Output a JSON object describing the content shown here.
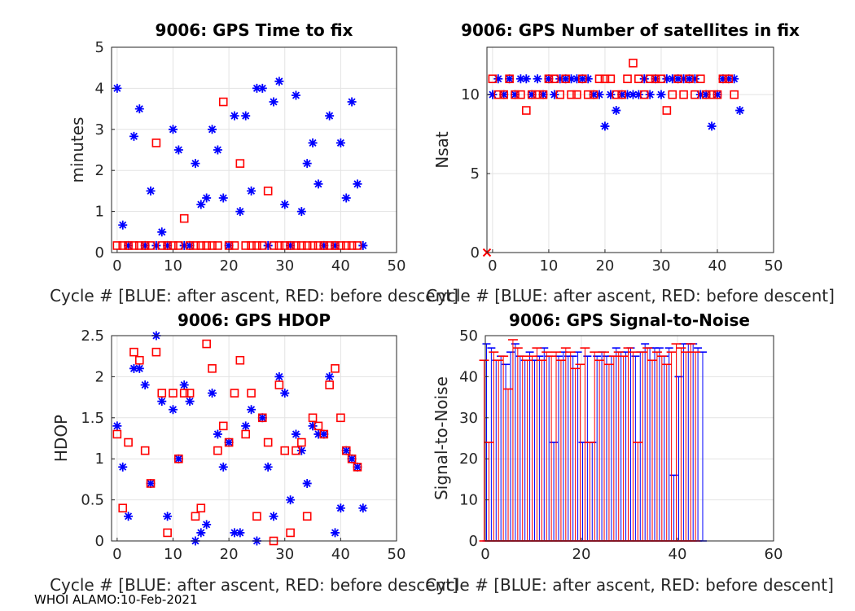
{
  "footer": "WHOI ALAMO:10-Feb-2021",
  "colors": {
    "blue": "#0000ff",
    "red": "#ff0000"
  },
  "chart_data": [
    {
      "id": "ttf",
      "type": "scatter",
      "title": "9006: GPS Time to fix",
      "xlabel": "Cycle #  [BLUE: after ascent, RED: before descent]",
      "ylabel": "minutes",
      "xlim": [
        -1,
        50
      ],
      "ylim": [
        0,
        5
      ],
      "xticks": [
        0,
        10,
        20,
        30,
        40,
        50
      ],
      "yticks": [
        0,
        1,
        2,
        3,
        4,
        5
      ],
      "series": [
        {
          "name": "after ascent",
          "marker": "asterisk",
          "color": "#0000ff",
          "x": [
            0,
            1,
            2,
            3,
            4,
            5,
            6,
            7,
            8,
            9,
            10,
            11,
            12,
            13,
            14,
            15,
            16,
            17,
            18,
            19,
            20,
            21,
            22,
            23,
            24,
            25,
            26,
            27,
            28,
            29,
            30,
            31,
            32,
            33,
            34,
            35,
            36,
            37,
            38,
            39,
            40,
            41,
            42,
            43,
            44
          ],
          "y": [
            4,
            0.67,
            0.17,
            2.83,
            3.5,
            0.17,
            1.5,
            0.17,
            0.5,
            0.17,
            3,
            2.5,
            0.17,
            0.17,
            2.17,
            1.17,
            1.33,
            3,
            2.5,
            1.33,
            0.17,
            3.33,
            1,
            3.33,
            1.5,
            4,
            4,
            0.17,
            3.67,
            4.17,
            1.17,
            0.17,
            3.83,
            1,
            2.17,
            2.67,
            1.67,
            0.17,
            3.33,
            0.17,
            2.67,
            1.33,
            3.67,
            1.67,
            0.17
          ]
        },
        {
          "name": "before descent",
          "marker": "square",
          "color": "#ff0000",
          "x": [
            0,
            1,
            2,
            3,
            4,
            5,
            6,
            7,
            8,
            9,
            10,
            11,
            12,
            13,
            14,
            15,
            16,
            17,
            18,
            19,
            20,
            21,
            22,
            23,
            24,
            25,
            26,
            27,
            28,
            29,
            30,
            31,
            32,
            33,
            34,
            35,
            36,
            37,
            38,
            39,
            40,
            41,
            42,
            43
          ],
          "y": [
            0.17,
            0.17,
            0.17,
            0.17,
            0.17,
            0.17,
            0.17,
            2.67,
            0.17,
            0.17,
            0.17,
            0.17,
            0.83,
            0.17,
            0.17,
            0.17,
            0.17,
            0.17,
            0.17,
            3.67,
            0.17,
            0.17,
            2.17,
            0.17,
            0.17,
            0.17,
            0.17,
            1.5,
            0.17,
            0.17,
            0.17,
            0.17,
            0.17,
            0.17,
            0.17,
            0.17,
            0.17,
            0.17,
            0.17,
            0.17,
            0.17,
            0.17,
            0.17,
            0.17
          ]
        }
      ]
    },
    {
      "id": "nsat",
      "type": "scatter",
      "title": "9006: GPS Number of satellites in fix",
      "xlabel": "Cycle #  [BLUE: after ascent, RED: before descent]",
      "ylabel": "Nsat",
      "xlim": [
        -1,
        50
      ],
      "ylim": [
        0,
        13
      ],
      "xticks": [
        0,
        10,
        20,
        30,
        40,
        50
      ],
      "yticks": [
        0,
        5,
        10
      ],
      "series": [
        {
          "name": "after ascent",
          "marker": "asterisk",
          "color": "#0000ff",
          "x": [
            0,
            1,
            2,
            3,
            4,
            5,
            6,
            7,
            8,
            9,
            10,
            11,
            12,
            13,
            14,
            15,
            16,
            17,
            18,
            19,
            20,
            21,
            22,
            23,
            24,
            25,
            26,
            27,
            28,
            29,
            30,
            31,
            32,
            33,
            34,
            35,
            36,
            37,
            38,
            39,
            40,
            41,
            42,
            43,
            44
          ],
          "y": [
            10,
            11,
            10,
            11,
            10,
            11,
            11,
            10,
            11,
            10,
            11,
            10,
            11,
            11,
            11,
            11,
            11,
            11,
            10,
            10,
            8,
            10,
            9,
            10,
            10,
            10,
            10,
            11,
            10,
            11,
            10,
            11,
            11,
            11,
            11,
            11,
            11,
            10,
            10,
            8,
            10,
            11,
            11,
            11,
            9
          ]
        },
        {
          "name": "before descent",
          "marker": "square",
          "color": "#ff0000",
          "x": [
            0,
            1,
            2,
            3,
            4,
            5,
            6,
            7,
            8,
            9,
            10,
            11,
            12,
            13,
            14,
            15,
            16,
            17,
            18,
            19,
            20,
            21,
            22,
            23,
            24,
            25,
            26,
            27,
            28,
            29,
            30,
            31,
            32,
            33,
            34,
            35,
            36,
            37,
            38,
            39,
            40,
            41,
            42,
            43
          ],
          "y": [
            11,
            10,
            10,
            11,
            10,
            10,
            9,
            10,
            10,
            10,
            11,
            11,
            10,
            11,
            10,
            10,
            11,
            10,
            10,
            11,
            11,
            11,
            10,
            10,
            11,
            12,
            11,
            10,
            11,
            11,
            11,
            9,
            10,
            11,
            10,
            11,
            10,
            11,
            10,
            10,
            10,
            11,
            11,
            10
          ]
        },
        {
          "name": "zero marker",
          "marker": "x",
          "color": "#ff0000",
          "x": [
            -1
          ],
          "y": [
            0
          ]
        }
      ]
    },
    {
      "id": "hdop",
      "type": "scatter",
      "title": "9006: GPS HDOP",
      "xlabel": "Cycle #  [BLUE: after ascent, RED: before descent]",
      "ylabel": "HDOP",
      "xlim": [
        -1,
        50
      ],
      "ylim": [
        0,
        2.5
      ],
      "xticks": [
        0,
        10,
        20,
        30,
        40,
        50
      ],
      "yticks": [
        0,
        0.5,
        1,
        1.5,
        2,
        2.5
      ],
      "series": [
        {
          "name": "after ascent",
          "marker": "asterisk",
          "color": "#0000ff",
          "x": [
            0,
            1,
            2,
            3,
            4,
            5,
            6,
            7,
            8,
            9,
            10,
            11,
            12,
            13,
            14,
            15,
            16,
            17,
            18,
            19,
            20,
            21,
            22,
            23,
            24,
            25,
            26,
            27,
            28,
            29,
            30,
            31,
            32,
            33,
            34,
            35,
            36,
            37,
            38,
            39,
            40,
            41,
            42,
            43,
            44
          ],
          "y": [
            1.4,
            0.9,
            0.3,
            2.1,
            2.1,
            1.9,
            0.7,
            2.5,
            1.7,
            0.3,
            1.6,
            1,
            1.9,
            1.7,
            0,
            0.1,
            0.2,
            1.8,
            1.3,
            0.9,
            1.2,
            0.1,
            0.1,
            1.4,
            1.6,
            0,
            1.5,
            0.9,
            0.3,
            2,
            1.8,
            0.5,
            1.3,
            1.1,
            0.7,
            1.4,
            1.3,
            1.3,
            2,
            0.1,
            0.4,
            1.1,
            1,
            0.9,
            0.4
          ]
        },
        {
          "name": "before descent",
          "marker": "square",
          "color": "#ff0000",
          "x": [
            0,
            1,
            2,
            3,
            4,
            5,
            6,
            7,
            8,
            9,
            10,
            11,
            12,
            13,
            14,
            15,
            16,
            17,
            18,
            19,
            20,
            21,
            22,
            23,
            24,
            25,
            26,
            27,
            28,
            29,
            30,
            31,
            32,
            33,
            34,
            35,
            36,
            37,
            38,
            39,
            40,
            41,
            42,
            43
          ],
          "y": [
            1.3,
            0.4,
            1.2,
            2.3,
            2.2,
            1.1,
            0.7,
            2.3,
            1.8,
            0.1,
            1.8,
            1,
            1.8,
            1.8,
            0.3,
            0.4,
            2.4,
            2.1,
            1.1,
            1.4,
            1.2,
            1.8,
            2.2,
            1.3,
            1.8,
            0.3,
            1.5,
            1.2,
            0,
            1.9,
            1.1,
            0.1,
            1.1,
            1.2,
            0.3,
            1.5,
            1.4,
            1.3,
            1.9,
            2.1,
            1.5,
            1.1,
            1,
            0.9
          ]
        }
      ]
    },
    {
      "id": "snr",
      "type": "bar",
      "title": "9006: GPS Signal-to-Noise",
      "xlabel": "Cycle #  [BLUE: after ascent, RED: before descent]",
      "ylabel": "Signal-to-Noise",
      "xlim": [
        0,
        60
      ],
      "ylim": [
        0,
        50
      ],
      "xticks": [
        0,
        20,
        40,
        60
      ],
      "yticks": [
        0,
        10,
        20,
        30,
        40,
        50
      ],
      "series": [
        {
          "name": "after ascent",
          "color": "#0000ff",
          "x": [
            0,
            1,
            2,
            3,
            4,
            5,
            6,
            7,
            8,
            9,
            10,
            11,
            12,
            13,
            14,
            15,
            16,
            17,
            18,
            19,
            20,
            21,
            22,
            23,
            24,
            25,
            26,
            27,
            28,
            29,
            30,
            31,
            32,
            33,
            34,
            35,
            36,
            37,
            38,
            39,
            40,
            41,
            42,
            43,
            44,
            45
          ],
          "max": [
            48,
            47,
            44,
            45,
            43,
            46,
            48,
            45,
            44,
            46,
            44,
            45,
            47,
            45,
            24,
            45,
            46,
            45,
            45,
            46,
            24,
            45,
            24,
            45,
            46,
            45,
            45,
            47,
            46,
            46,
            47,
            45,
            46,
            48,
            47,
            47,
            47,
            45,
            47,
            16,
            40,
            48,
            48,
            48,
            47,
            46
          ],
          "min": [
            0,
            0,
            0,
            0,
            0,
            0,
            0,
            0,
            0,
            0,
            0,
            0,
            0,
            0,
            0,
            0,
            0,
            0,
            0,
            0,
            0,
            0,
            0,
            0,
            0,
            0,
            0,
            0,
            0,
            0,
            0,
            0,
            0,
            0,
            0,
            0,
            0,
            0,
            0,
            0,
            0,
            0,
            0,
            0,
            0,
            0
          ]
        },
        {
          "name": "before descent",
          "color": "#ff0000",
          "x": [
            0,
            1,
            2,
            3,
            4,
            5,
            6,
            7,
            8,
            9,
            10,
            11,
            12,
            13,
            14,
            15,
            16,
            17,
            18,
            19,
            20,
            21,
            22,
            23,
            24,
            25,
            26,
            27,
            28,
            29,
            30,
            31,
            32,
            33,
            34,
            35,
            36,
            37,
            38,
            39,
            40,
            41,
            42,
            43,
            44
          ],
          "max": [
            44,
            24,
            46,
            44,
            45,
            37,
            49,
            47,
            45,
            44,
            45,
            47,
            44,
            46,
            45,
            46,
            44,
            47,
            46,
            42,
            43,
            47,
            24,
            46,
            44,
            46,
            43,
            45,
            46,
            45,
            47,
            46,
            24,
            46,
            47,
            44,
            46,
            45,
            43,
            46,
            48,
            47,
            46,
            48,
            46
          ],
          "min": [
            0,
            0,
            0,
            0,
            0,
            0,
            0,
            0,
            0,
            0,
            0,
            0,
            0,
            0,
            0,
            0,
            0,
            0,
            0,
            0,
            0,
            0,
            0,
            0,
            0,
            0,
            0,
            0,
            0,
            0,
            0,
            0,
            0,
            0,
            0,
            0,
            0,
            0,
            0,
            0,
            0,
            0,
            0,
            0,
            0
          ]
        }
      ]
    }
  ]
}
